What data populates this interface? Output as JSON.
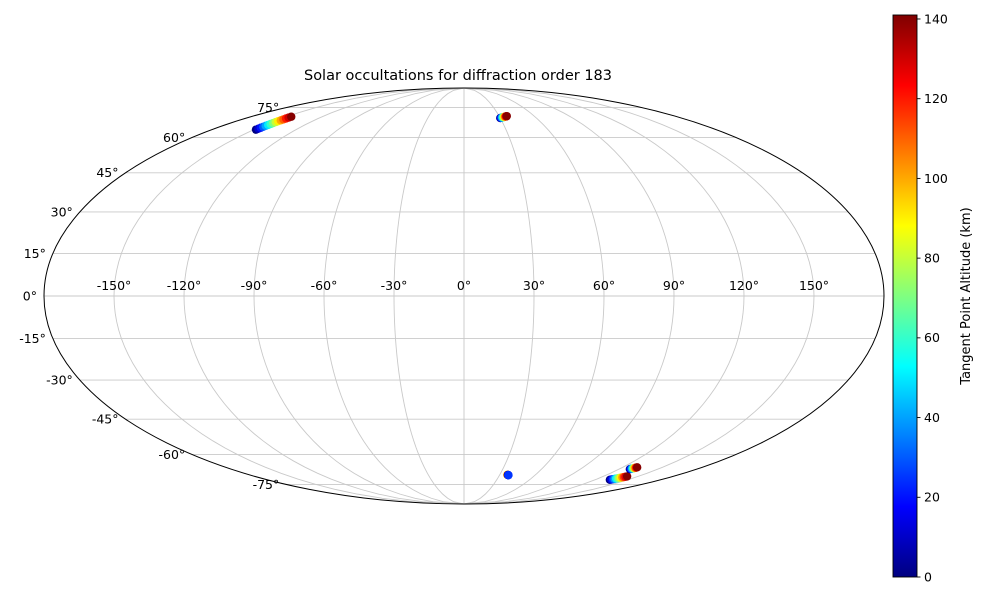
{
  "figure": {
    "background": "#ffffff",
    "grid_color": "#c9c9c9",
    "outline_color": "#000000"
  },
  "chart_data": {
    "type": "scatter",
    "projection": "mollweide",
    "title": "Solar occultations for diffraction order 183",
    "grid": true,
    "legend": "none",
    "colorbar": {
      "label": "Tangent Point Altitude (km)",
      "colormap": "jet",
      "vmin": 0,
      "vmax": 141,
      "ticks": [
        0,
        20,
        40,
        60,
        80,
        100,
        120,
        140
      ]
    },
    "lat_ticks": [
      {
        "value": 75,
        "label": "75°"
      },
      {
        "value": 60,
        "label": "60°"
      },
      {
        "value": 45,
        "label": "45°"
      },
      {
        "value": 30,
        "label": "30°"
      },
      {
        "value": 15,
        "label": "15°"
      },
      {
        "value": 0,
        "label": "0°"
      },
      {
        "value": -15,
        "label": "-15°"
      },
      {
        "value": -30,
        "label": "-30°"
      },
      {
        "value": -45,
        "label": "-45°"
      },
      {
        "value": -60,
        "label": "-60°"
      },
      {
        "value": -75,
        "label": "-75°"
      }
    ],
    "lon_ticks": [
      {
        "value": -150,
        "label": "-150°"
      },
      {
        "value": -120,
        "label": "-120°"
      },
      {
        "value": -90,
        "label": "-90°"
      },
      {
        "value": -60,
        "label": "-60°"
      },
      {
        "value": -30,
        "label": "-30°"
      },
      {
        "value": 0,
        "label": "0°"
      },
      {
        "value": 30,
        "label": "30°"
      },
      {
        "value": 60,
        "label": "60°"
      },
      {
        "value": 90,
        "label": "90°"
      },
      {
        "value": 120,
        "label": "120°"
      },
      {
        "value": 150,
        "label": "150°"
      }
    ],
    "series": [
      {
        "name": "occultation-track-northwest",
        "lon": [
          -148.5,
          -148.32,
          -148.14,
          -147.96,
          -147.79,
          -147.61,
          -147.43,
          -147.25,
          -147.07,
          -146.89,
          -146.71,
          -146.54,
          -146.36,
          -146.18,
          -146.0
        ],
        "lat": [
          63.6,
          64.06,
          64.51,
          64.97,
          65.43,
          65.89,
          66.34,
          66.8,
          67.26,
          67.71,
          68.17,
          68.63,
          69.09,
          69.54,
          70.0
        ],
        "alt": [
          0,
          10,
          20,
          30,
          40,
          50,
          60,
          70,
          80,
          90,
          100,
          110,
          120,
          130,
          140
        ]
      },
      {
        "name": "occultation-track-north-center",
        "lon": [
          30.0,
          30.46,
          30.93,
          31.39,
          31.86,
          32.32,
          32.79,
          33.25,
          33.71,
          34.18,
          34.64,
          35.11,
          35.57,
          36.04,
          36.5
        ],
        "lat": [
          69.3,
          69.37,
          69.44,
          69.51,
          69.59,
          69.66,
          69.73,
          69.8,
          69.87,
          69.94,
          70.01,
          70.09,
          70.16,
          70.23,
          70.3
        ],
        "alt": [
          0,
          10,
          20,
          30,
          40,
          50,
          60,
          70,
          80,
          90,
          100,
          110,
          120,
          130,
          140
        ]
      },
      {
        "name": "occultation-track-south-center",
        "lon": [
          36.3,
          36.7,
          37.0,
          37.1,
          37.2,
          37.3,
          37.4,
          37.5
        ],
        "lat": [
          -69.75,
          -69.8,
          -69.85,
          -69.88,
          -69.9,
          -69.92,
          -69.94,
          -69.95
        ],
        "alt": [
          90,
          120,
          0,
          5,
          10,
          15,
          20,
          25
        ]
      },
      {
        "name": "occultation-track-southeast-streak",
        "lon": [
          133.5,
          134.14,
          134.77,
          135.41,
          136.05,
          136.68,
          137.32,
          137.95,
          138.59,
          139.23,
          139.86,
          140.5
        ],
        "lat": [
          -72.4,
          -72.24,
          -72.07,
          -71.91,
          -71.75,
          -71.58,
          -71.42,
          -71.25,
          -71.09,
          -70.93,
          -70.76,
          -70.6
        ],
        "alt": [
          0,
          13,
          25,
          38,
          51,
          64,
          76,
          89,
          102,
          115,
          127,
          140
        ]
      },
      {
        "name": "occultation-track-southeast-blob",
        "lon": [
          128.3,
          128.59,
          128.88,
          129.17,
          129.46,
          129.74,
          130.03,
          130.32,
          130.61,
          130.9
        ],
        "lat": [
          -66.9,
          -66.8,
          -66.7,
          -66.6,
          -66.5,
          -66.4,
          -66.3,
          -66.2,
          -66.1,
          -66.0
        ],
        "alt": [
          0,
          16,
          31,
          47,
          62,
          78,
          93,
          109,
          124,
          140
        ]
      }
    ]
  }
}
